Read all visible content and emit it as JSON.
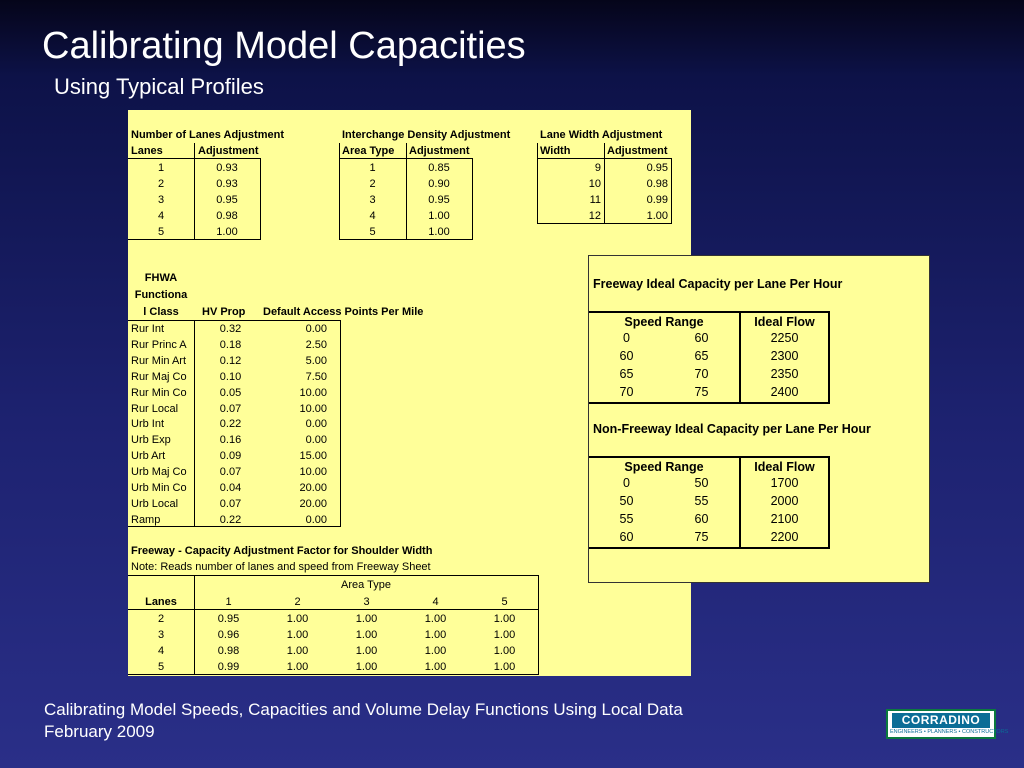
{
  "title": "Calibrating Model Capacities",
  "subtitle": "Using Typical Profiles",
  "footer": {
    "line1": "Calibrating Model Speeds, Capacities and Volume Delay Functions Using Local Data",
    "line2": "February 2009"
  },
  "logo": {
    "name": "CORRADINO",
    "tagline": "ENGINEERS • PLANNERS • CONSTRUCTORS"
  },
  "lanes_adj": {
    "title": "Number of Lanes Adjustment",
    "col1": "Lanes",
    "col2": "Adjustment",
    "rows": [
      [
        "1",
        "0.93"
      ],
      [
        "2",
        "0.93"
      ],
      [
        "3",
        "0.95"
      ],
      [
        "4",
        "0.98"
      ],
      [
        "5",
        "1.00"
      ]
    ]
  },
  "density_adj": {
    "title": "Interchange Density Adjustment",
    "col1": "Area Type",
    "col2": "Adjustment",
    "rows": [
      [
        "1",
        "0.85"
      ],
      [
        "2",
        "0.90"
      ],
      [
        "3",
        "0.95"
      ],
      [
        "4",
        "1.00"
      ],
      [
        "5",
        "1.00"
      ]
    ]
  },
  "width_adj": {
    "title": "Lane Width Adjustment",
    "col1": "Width",
    "col2": "Adjustment",
    "rows": [
      [
        "9",
        "0.95"
      ],
      [
        "10",
        "0.98"
      ],
      [
        "11",
        "0.99"
      ],
      [
        "12",
        "1.00"
      ]
    ]
  },
  "fclass": {
    "header1": "FHWA",
    "header2": "Functiona",
    "header3": "l Class",
    "col2": "HV Prop",
    "col3": "Default Access Points Per Mile",
    "rows": [
      [
        "Rur Int",
        "0.32",
        "0.00"
      ],
      [
        "Rur Princ A",
        "0.18",
        "2.50"
      ],
      [
        "Rur Min Art",
        "0.12",
        "5.00"
      ],
      [
        "Rur Maj Co",
        "0.10",
        "7.50"
      ],
      [
        "Rur Min Co",
        "0.05",
        "10.00"
      ],
      [
        "Rur Local",
        "0.07",
        "10.00"
      ],
      [
        "Urb Int",
        "0.22",
        "0.00"
      ],
      [
        "Urb Exp",
        "0.16",
        "0.00"
      ],
      [
        "Urb Art",
        "0.09",
        "15.00"
      ],
      [
        "Urb Maj Co",
        "0.07",
        "10.00"
      ],
      [
        "Urb Min Co",
        "0.04",
        "20.00"
      ],
      [
        "Urb Local",
        "0.07",
        "20.00"
      ],
      [
        "Ramp",
        "0.22",
        "0.00"
      ]
    ]
  },
  "shoulder": {
    "title": "Freeway - Capacity Adjustment Factor for Shoulder Width",
    "note": "Note: Reads number of lanes and speed from Freeway Sheet",
    "area_type": "Area Type",
    "lanes": "Lanes",
    "cols": [
      "1",
      "2",
      "3",
      "4",
      "5"
    ],
    "rows": [
      [
        "2",
        "0.95",
        "1.00",
        "1.00",
        "1.00",
        "1.00"
      ],
      [
        "3",
        "0.96",
        "1.00",
        "1.00",
        "1.00",
        "1.00"
      ],
      [
        "4",
        "0.98",
        "1.00",
        "1.00",
        "1.00",
        "1.00"
      ],
      [
        "5",
        "0.99",
        "1.00",
        "1.00",
        "1.00",
        "1.00"
      ]
    ]
  },
  "freeway": {
    "title": "Freeway Ideal Capacity per Lane Per Hour",
    "speed_range": "Speed Range",
    "ideal_flow": "Ideal Flow",
    "rows": [
      [
        "0",
        "60",
        "2250"
      ],
      [
        "60",
        "65",
        "2300"
      ],
      [
        "65",
        "70",
        "2350"
      ],
      [
        "70",
        "75",
        "2400"
      ]
    ]
  },
  "nonfreeway": {
    "title": "Non-Freeway Ideal Capacity per Lane Per Hour",
    "speed_range": "Speed Range",
    "ideal_flow": "Ideal Flow",
    "rows": [
      [
        "0",
        "50",
        "1700"
      ],
      [
        "50",
        "55",
        "2000"
      ],
      [
        "55",
        "60",
        "2100"
      ],
      [
        "60",
        "75",
        "2200"
      ]
    ]
  }
}
